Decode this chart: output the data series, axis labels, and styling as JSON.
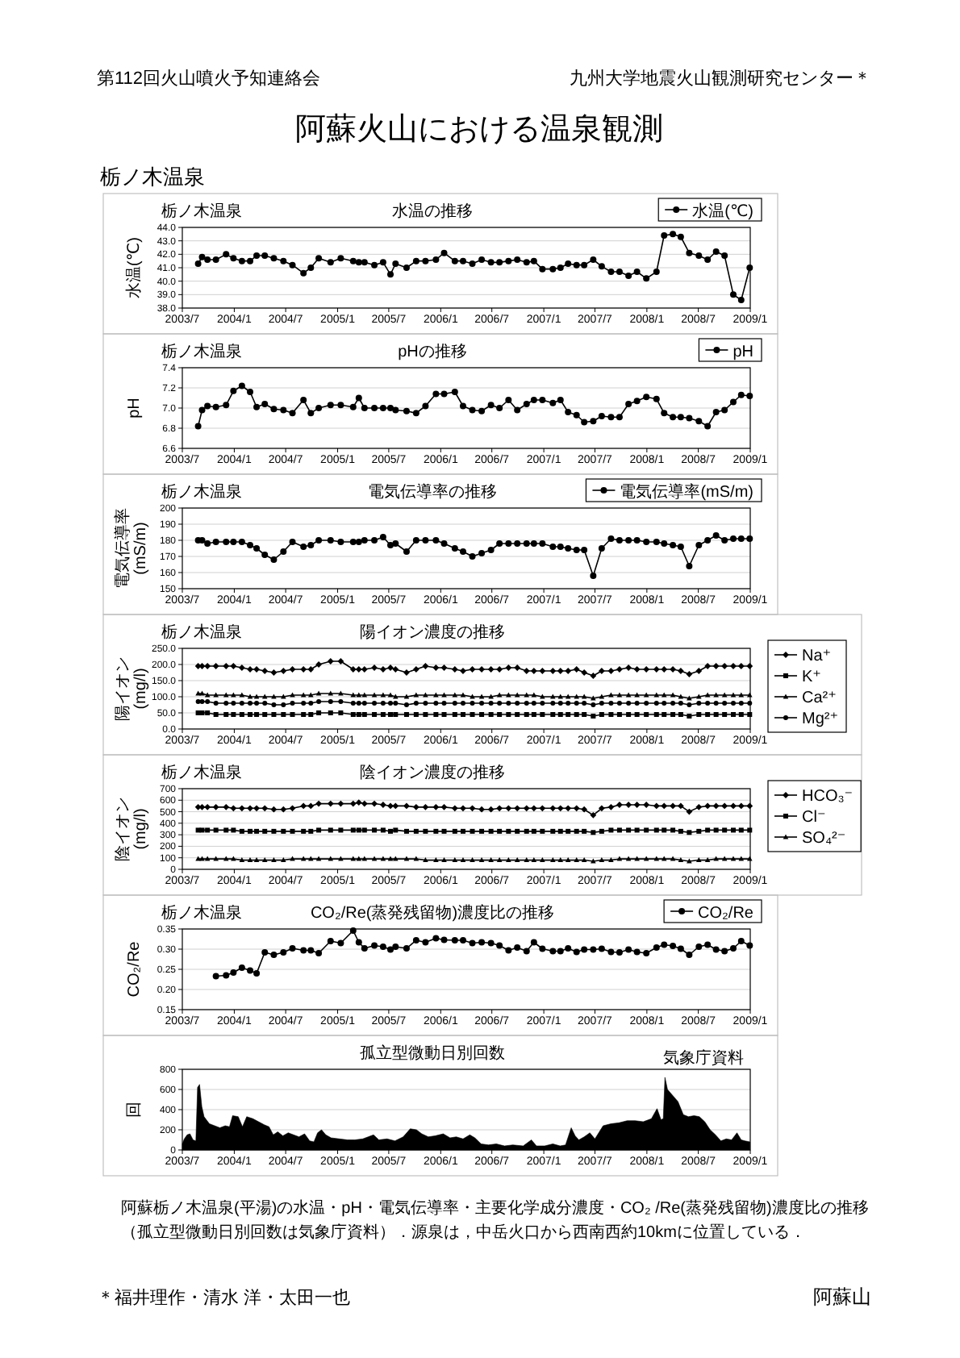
{
  "chart_data": [
    {
      "type": "other",
      "title": "阿蘇火山における温泉観測",
      "annotations": [
        "第112回火山噴火予知連絡会",
        "九州大学地震火山観測研究センター＊",
        "栃ノ木温泉"
      ]
    },
    {
      "type": "line",
      "subtitle": "栃ノ木温泉",
      "title": "水温の推移",
      "ylabel": "水温(℃)",
      "grid": "y",
      "legend": "top right",
      "marker": "circle",
      "line_style": "solid",
      "xlim": [
        "2003-07",
        "2009-01"
      ],
      "xticks": [
        {
          "value": "2003-07",
          "label": "2003/7"
        },
        {
          "value": "2004-01",
          "label": "2004/1"
        },
        {
          "value": "2004-07",
          "label": "2004/7"
        },
        {
          "value": "2005-01",
          "label": "2005/1"
        },
        {
          "value": "2005-07",
          "label": "2005/7"
        },
        {
          "value": "2006-01",
          "label": "2006/1"
        },
        {
          "value": "2006-07",
          "label": "2006/7"
        },
        {
          "value": "2007-01",
          "label": "2007/1"
        },
        {
          "value": "2007-07",
          "label": "2007/7"
        },
        {
          "value": "2008-01",
          "label": "2008/1"
        },
        {
          "value": "2008-07",
          "label": "2008/7"
        },
        {
          "value": "2009-01",
          "label": "2009/1"
        }
      ],
      "ylim": [
        38,
        44
      ],
      "yticks": [
        {
          "value": 38,
          "label": "38.0"
        },
        {
          "value": 39,
          "label": "39.0"
        },
        {
          "value": 40,
          "label": "40.0"
        },
        {
          "value": 41,
          "label": "41.0"
        },
        {
          "value": 42,
          "label": "42.0"
        },
        {
          "value": 43,
          "label": "43.0"
        },
        {
          "value": 44,
          "label": "44.0"
        }
      ],
      "x": [
        "2003-08-26",
        "2003-09-09",
        "2003-09-28",
        "2003-10-28",
        "2003-12-03",
        "2003-12-29",
        "2004-01-28",
        "2004-02-26",
        "2004-03-20",
        "2004-04-18",
        "2004-05-20",
        "2004-06-23",
        "2004-07-25",
        "2004-09-02",
        "2004-09-28",
        "2004-10-26",
        "2004-12-07",
        "2005-01-12",
        "2005-02-25",
        "2005-03-17",
        "2005-04-06",
        "2005-05-11",
        "2005-06-11",
        "2005-07-07",
        "2005-07-25",
        "2005-09-02",
        "2005-10-06",
        "2005-11-08",
        "2005-12-15",
        "2006-01-13",
        "2006-02-20",
        "2006-03-21",
        "2006-04-23",
        "2006-05-26",
        "2006-06-28",
        "2006-07-28",
        "2006-08-29",
        "2006-09-29",
        "2006-11-01",
        "2006-11-27",
        "2006-12-27",
        "2007-02-02",
        "2007-03-01",
        "2007-03-28",
        "2007-04-27",
        "2007-05-24",
        "2007-06-25",
        "2007-07-25",
        "2007-08-27",
        "2007-09-26",
        "2007-10-28",
        "2007-11-27",
        "2007-12-30",
        "2008-02-04",
        "2008-03-02",
        "2008-04-02",
        "2008-04-30",
        "2008-05-30",
        "2008-07-03",
        "2008-08-03",
        "2008-09-02",
        "2008-10-02",
        "2008-11-02",
        "2008-11-30",
        "2008-12-30"
      ],
      "series": [
        {
          "name": "水温(℃)",
          "color": "#000000",
          "values": [
            41.3,
            41.8,
            41.6,
            41.6,
            42.0,
            41.7,
            41.5,
            41.5,
            41.9,
            41.9,
            41.7,
            41.5,
            41.2,
            40.6,
            41.0,
            41.7,
            41.4,
            41.7,
            41.5,
            41.4,
            41.4,
            41.2,
            41.4,
            40.5,
            41.3,
            41.0,
            41.5,
            41.5,
            41.6,
            42.1,
            41.5,
            41.5,
            41.3,
            41.6,
            41.4,
            41.4,
            41.5,
            41.6,
            41.4,
            41.5,
            40.9,
            40.9,
            41.0,
            41.3,
            41.2,
            41.2,
            41.6,
            41.1,
            40.7,
            40.7,
            40.4,
            40.7,
            40.2,
            40.7,
            43.4,
            43.5,
            43.3,
            42.1,
            41.9,
            41.6,
            42.2,
            41.9,
            39.0,
            38.6,
            41.0
          ]
        }
      ]
    },
    {
      "type": "line",
      "subtitle": "栃ノ木温泉",
      "title": "pHの推移",
      "ylabel": "pH",
      "grid": "y",
      "legend": "top right",
      "marker": "circle",
      "line_style": "solid",
      "xlim": [
        "2003-07",
        "2009-01"
      ],
      "xticks": [
        {
          "value": "2003-07",
          "label": "2003/7"
        },
        {
          "value": "2004-01",
          "label": "2004/1"
        },
        {
          "value": "2004-07",
          "label": "2004/7"
        },
        {
          "value": "2005-01",
          "label": "2005/1"
        },
        {
          "value": "2005-07",
          "label": "2005/7"
        },
        {
          "value": "2006-01",
          "label": "2006/1"
        },
        {
          "value": "2006-07",
          "label": "2006/7"
        },
        {
          "value": "2007-01",
          "label": "2007/1"
        },
        {
          "value": "2007-07",
          "label": "2007/7"
        },
        {
          "value": "2008-01",
          "label": "2008/1"
        },
        {
          "value": "2008-07",
          "label": "2008/7"
        },
        {
          "value": "2009-01",
          "label": "2009/1"
        }
      ],
      "ylim": [
        6.6,
        7.4
      ],
      "yticks": [
        6.6,
        6.8,
        {
          "value": 7,
          "label": "7.0"
        },
        7.2,
        7.4
      ],
      "x": [
        "2003-08-26",
        "2003-09-09",
        "2003-09-28",
        "2003-10-28",
        "2003-12-03",
        "2003-12-29",
        "2004-01-28",
        "2004-02-26",
        "2004-03-20",
        "2004-04-18",
        "2004-05-20",
        "2004-06-23",
        "2004-07-25",
        "2004-09-02",
        "2004-09-28",
        "2004-10-26",
        "2004-12-07",
        "2005-01-12",
        "2005-02-25",
        "2005-03-17",
        "2005-04-06",
        "2005-05-11",
        "2005-06-11",
        "2005-07-07",
        "2005-07-25",
        "2005-09-02",
        "2005-10-06",
        "2005-11-08",
        "2005-12-15",
        "2006-01-13",
        "2006-02-20",
        "2006-03-21",
        "2006-04-23",
        "2006-05-26",
        "2006-06-28",
        "2006-07-28",
        "2006-08-29",
        "2006-09-29",
        "2006-11-01",
        "2006-11-27",
        "2006-12-27",
        "2007-02-02",
        "2007-03-01",
        "2007-03-28",
        "2007-04-27",
        "2007-05-24",
        "2007-06-25",
        "2007-07-25",
        "2007-08-27",
        "2007-09-26",
        "2007-10-28",
        "2007-11-27",
        "2007-12-30",
        "2008-02-04",
        "2008-03-02",
        "2008-04-02",
        "2008-04-30",
        "2008-05-30",
        "2008-07-03",
        "2008-08-03",
        "2008-09-02",
        "2008-10-02",
        "2008-11-02",
        "2008-11-30",
        "2008-12-30"
      ],
      "series": [
        {
          "name": "pH",
          "color": "#000000",
          "values": [
            6.82,
            6.98,
            7.02,
            7.01,
            7.03,
            7.17,
            7.22,
            7.16,
            7.01,
            7.04,
            6.99,
            6.98,
            6.95,
            7.08,
            6.95,
            7.0,
            7.03,
            7.03,
            7.01,
            7.1,
            7.0,
            7.0,
            7.0,
            7.0,
            6.98,
            6.97,
            6.95,
            7.02,
            7.14,
            7.14,
            7.16,
            7.02,
            6.98,
            6.97,
            7.03,
            7.0,
            7.08,
            6.98,
            7.04,
            7.08,
            7.08,
            7.05,
            7.08,
            6.96,
            6.93,
            6.86,
            6.87,
            6.92,
            6.91,
            6.91,
            7.04,
            7.07,
            7.11,
            7.09,
            6.95,
            6.91,
            6.91,
            6.9,
            6.87,
            6.82,
            6.96,
            6.98,
            7.06,
            7.13,
            7.12
          ]
        }
      ]
    },
    {
      "type": "line",
      "subtitle": "栃ノ木温泉",
      "title": "電気伝導率の推移",
      "ylabel": "電気伝導率(mS/m)",
      "grid": "y",
      "legend": "top right",
      "marker": "circle",
      "line_style": "solid",
      "xlim": [
        "2003-07",
        "2009-01"
      ],
      "xticks": [
        {
          "value": "2003-07",
          "label": "2003/7"
        },
        {
          "value": "2004-01",
          "label": "2004/1"
        },
        {
          "value": "2004-07",
          "label": "2004/7"
        },
        {
          "value": "2005-01",
          "label": "2005/1"
        },
        {
          "value": "2005-07",
          "label": "2005/7"
        },
        {
          "value": "2006-01",
          "label": "2006/1"
        },
        {
          "value": "2006-07",
          "label": "2006/7"
        },
        {
          "value": "2007-01",
          "label": "2007/1"
        },
        {
          "value": "2007-07",
          "label": "2007/7"
        },
        {
          "value": "2008-01",
          "label": "2008/1"
        },
        {
          "value": "2008-07",
          "label": "2008/7"
        },
        {
          "value": "2009-01",
          "label": "2009/1"
        }
      ],
      "ylim": [
        150,
        200
      ],
      "yticks": [
        150,
        160,
        170,
        180,
        190,
        200
      ],
      "x": [
        "2003-08-26",
        "2003-09-09",
        "2003-09-28",
        "2003-10-28",
        "2003-12-03",
        "2003-12-29",
        "2004-01-28",
        "2004-02-26",
        "2004-03-20",
        "2004-04-18",
        "2004-05-20",
        "2004-06-23",
        "2004-07-25",
        "2004-09-02",
        "2004-09-28",
        "2004-10-26",
        "2004-12-07",
        "2005-01-12",
        "2005-02-25",
        "2005-03-17",
        "2005-04-06",
        "2005-05-11",
        "2005-06-11",
        "2005-07-07",
        "2005-07-25",
        "2005-09-02",
        "2005-10-06",
        "2005-11-08",
        "2005-12-15",
        "2006-01-13",
        "2006-02-20",
        "2006-03-21",
        "2006-04-23",
        "2006-05-26",
        "2006-06-28",
        "2006-07-28",
        "2006-08-29",
        "2006-09-29",
        "2006-11-01",
        "2006-11-27",
        "2006-12-27",
        "2007-02-02",
        "2007-03-01",
        "2007-03-28",
        "2007-04-27",
        "2007-05-24",
        "2007-06-25",
        "2007-07-25",
        "2007-08-27",
        "2007-09-26",
        "2007-10-28",
        "2007-11-27",
        "2007-12-30",
        "2008-02-04",
        "2008-03-02",
        "2008-04-02",
        "2008-04-30",
        "2008-05-30",
        "2008-07-03",
        "2008-08-03",
        "2008-09-02",
        "2008-10-02",
        "2008-11-02",
        "2008-11-30",
        "2008-12-30"
      ],
      "series": [
        {
          "name": "電気伝導率(mS/m)",
          "color": "#000000",
          "values": [
            180,
            180,
            178,
            179,
            179,
            179,
            179,
            177,
            175,
            171,
            168,
            173,
            179,
            176,
            177,
            180,
            180,
            179,
            179,
            179,
            180,
            180,
            182,
            177,
            178,
            173,
            180,
            180,
            180,
            178,
            175,
            173,
            170,
            172,
            174,
            178,
            178,
            178,
            178,
            178,
            178,
            176,
            176,
            175,
            174,
            174,
            158,
            175,
            181,
            180,
            180,
            180,
            179,
            179,
            178,
            177,
            176,
            164,
            177,
            180,
            183,
            180,
            181,
            181,
            181
          ]
        }
      ]
    },
    {
      "type": "line",
      "subtitle": "栃ノ木温泉",
      "title": "陽イオン濃度の推移",
      "ylabel": "陽イオン(mg/l)",
      "grid": "y",
      "legend": "right",
      "line_style": "solid",
      "xlim": [
        "2003-07",
        "2009-01"
      ],
      "xticks": [
        {
          "value": "2003-07",
          "label": "2003/7"
        },
        {
          "value": "2004-01",
          "label": "2004/1"
        },
        {
          "value": "2004-07",
          "label": "2004/7"
        },
        {
          "value": "2005-01",
          "label": "2005/1"
        },
        {
          "value": "2005-07",
          "label": "2005/7"
        },
        {
          "value": "2006-01",
          "label": "2006/1"
        },
        {
          "value": "2006-07",
          "label": "2006/7"
        },
        {
          "value": "2007-01",
          "label": "2007/1"
        },
        {
          "value": "2007-07",
          "label": "2007/7"
        },
        {
          "value": "2008-01",
          "label": "2008/1"
        },
        {
          "value": "2008-07",
          "label": "2008/7"
        },
        {
          "value": "2009-01",
          "label": "2009/1"
        }
      ],
      "ylim": [
        0,
        250
      ],
      "yticks": [
        {
          "value": 0,
          "label": "0.0"
        },
        {
          "value": 50,
          "label": "50.0"
        },
        {
          "value": 100,
          "label": "100.0"
        },
        {
          "value": 150,
          "label": "150.0"
        },
        {
          "value": 200,
          "label": "200.0"
        },
        {
          "value": 250,
          "label": "250.0"
        }
      ],
      "x": [
        "2003-08-26",
        "2003-09-09",
        "2003-09-28",
        "2003-10-28",
        "2003-12-03",
        "2003-12-29",
        "2004-01-28",
        "2004-02-26",
        "2004-03-20",
        "2004-04-18",
        "2004-05-20",
        "2004-06-23",
        "2004-07-25",
        "2004-09-02",
        "2004-09-28",
        "2004-10-26",
        "2004-12-07",
        "2005-01-12",
        "2005-02-25",
        "2005-03-17",
        "2005-04-06",
        "2005-05-11",
        "2005-06-11",
        "2005-07-07",
        "2005-07-25",
        "2005-09-02",
        "2005-10-06",
        "2005-11-08",
        "2005-12-15",
        "2006-01-13",
        "2006-02-20",
        "2006-03-21",
        "2006-04-23",
        "2006-05-26",
        "2006-06-28",
        "2006-07-28",
        "2006-08-29",
        "2006-09-29",
        "2006-11-01",
        "2006-11-27",
        "2006-12-27",
        "2007-02-02",
        "2007-03-01",
        "2007-03-28",
        "2007-04-27",
        "2007-05-24",
        "2007-06-25",
        "2007-07-25",
        "2007-08-27",
        "2007-09-26",
        "2007-10-28",
        "2007-11-27",
        "2007-12-30",
        "2008-02-04",
        "2008-03-02",
        "2008-04-02",
        "2008-04-30",
        "2008-05-30",
        "2008-07-03",
        "2008-08-03",
        "2008-09-02",
        "2008-10-02",
        "2008-11-02",
        "2008-11-30",
        "2008-12-30"
      ],
      "series": [
        {
          "name": "Na⁺",
          "color": "#000000",
          "marker": "diamond",
          "values": [
            195,
            195,
            195,
            195,
            195,
            195,
            190,
            185,
            185,
            180,
            175,
            180,
            185,
            185,
            185,
            200,
            210,
            210,
            185,
            185,
            185,
            190,
            185,
            190,
            185,
            175,
            185,
            195,
            190,
            190,
            185,
            180,
            185,
            185,
            185,
            185,
            190,
            190,
            180,
            180,
            180,
            180,
            180,
            180,
            185,
            175,
            165,
            180,
            180,
            185,
            190,
            185,
            185,
            185,
            185,
            185,
            180,
            170,
            180,
            195,
            195,
            195,
            195,
            195,
            195
          ]
        },
        {
          "name": "K⁺",
          "color": "#000000",
          "marker": "square",
          "values": [
            50,
            50,
            50,
            45,
            45,
            45,
            45,
            45,
            45,
            45,
            45,
            45,
            45,
            45,
            45,
            50,
            50,
            50,
            45,
            45,
            45,
            45,
            45,
            45,
            45,
            45,
            45,
            45,
            45,
            45,
            45,
            45,
            45,
            45,
            45,
            45,
            45,
            45,
            45,
            45,
            45,
            45,
            45,
            45,
            45,
            45,
            40,
            45,
            45,
            45,
            45,
            45,
            45,
            45,
            45,
            45,
            45,
            40,
            45,
            45,
            45,
            45,
            45,
            45,
            45
          ]
        },
        {
          "name": "Ca²⁺",
          "color": "#000000",
          "marker": "triangle",
          "values": [
            110,
            110,
            105,
            105,
            105,
            105,
            105,
            100,
            100,
            100,
            100,
            100,
            105,
            105,
            105,
            110,
            110,
            110,
            105,
            105,
            105,
            105,
            105,
            105,
            100,
            100,
            105,
            105,
            105,
            105,
            105,
            105,
            100,
            100,
            100,
            105,
            105,
            105,
            105,
            105,
            100,
            100,
            100,
            100,
            100,
            100,
            95,
            100,
            105,
            105,
            105,
            105,
            105,
            105,
            105,
            105,
            100,
            95,
            100,
            105,
            105,
            105,
            105,
            105,
            105
          ]
        },
        {
          "name": "Mg²⁺",
          "color": "#000000",
          "marker": "circle",
          "values": [
            85,
            85,
            85,
            80,
            80,
            80,
            80,
            80,
            80,
            80,
            75,
            75,
            80,
            80,
            80,
            85,
            85,
            85,
            80,
            80,
            80,
            80,
            80,
            80,
            80,
            75,
            80,
            80,
            80,
            80,
            80,
            80,
            80,
            80,
            80,
            80,
            80,
            80,
            80,
            80,
            80,
            80,
            80,
            80,
            80,
            80,
            75,
            80,
            80,
            80,
            80,
            80,
            80,
            80,
            80,
            80,
            80,
            75,
            80,
            80,
            80,
            80,
            80,
            80,
            80
          ]
        }
      ]
    },
    {
      "type": "line",
      "subtitle": "栃ノ木温泉",
      "title": "陰イオン濃度の推移",
      "ylabel": "陰イオン(mg/l)",
      "grid": "y",
      "legend": "right",
      "line_style": "solid",
      "xlim": [
        "2003-07",
        "2009-01"
      ],
      "xticks": [
        {
          "value": "2003-07",
          "label": "2003/7"
        },
        {
          "value": "2004-01",
          "label": "2004/1"
        },
        {
          "value": "2004-07",
          "label": "2004/7"
        },
        {
          "value": "2005-01",
          "label": "2005/1"
        },
        {
          "value": "2005-07",
          "label": "2005/7"
        },
        {
          "value": "2006-01",
          "label": "2006/1"
        },
        {
          "value": "2006-07",
          "label": "2006/7"
        },
        {
          "value": "2007-01",
          "label": "2007/1"
        },
        {
          "value": "2007-07",
          "label": "2007/7"
        },
        {
          "value": "2008-01",
          "label": "2008/1"
        },
        {
          "value": "2008-07",
          "label": "2008/7"
        },
        {
          "value": "2009-01",
          "label": "2009/1"
        }
      ],
      "ylim": [
        0,
        700
      ],
      "yticks": [
        0,
        100,
        200,
        300,
        400,
        500,
        600,
        700
      ],
      "x": [
        "2003-08-26",
        "2003-09-09",
        "2003-09-28",
        "2003-10-28",
        "2003-12-03",
        "2003-12-29",
        "2004-01-28",
        "2004-02-26",
        "2004-03-20",
        "2004-04-18",
        "2004-05-20",
        "2004-06-23",
        "2004-07-25",
        "2004-09-02",
        "2004-09-28",
        "2004-10-26",
        "2004-12-07",
        "2005-01-12",
        "2005-02-25",
        "2005-03-17",
        "2005-04-06",
        "2005-05-11",
        "2005-06-11",
        "2005-07-07",
        "2005-07-25",
        "2005-09-02",
        "2005-10-06",
        "2005-11-08",
        "2005-12-15",
        "2006-01-13",
        "2006-02-20",
        "2006-03-21",
        "2006-04-23",
        "2006-05-26",
        "2006-06-28",
        "2006-07-28",
        "2006-08-29",
        "2006-09-29",
        "2006-11-01",
        "2006-11-27",
        "2006-12-27",
        "2007-02-02",
        "2007-03-01",
        "2007-03-28",
        "2007-04-27",
        "2007-05-24",
        "2007-06-25",
        "2007-07-25",
        "2007-08-27",
        "2007-09-26",
        "2007-10-28",
        "2007-11-27",
        "2007-12-30",
        "2008-02-04",
        "2008-03-02",
        "2008-04-02",
        "2008-04-30",
        "2008-05-30",
        "2008-07-03",
        "2008-08-03",
        "2008-09-02",
        "2008-10-02",
        "2008-11-02",
        "2008-11-30",
        "2008-12-30"
      ],
      "series": [
        {
          "name": "HCO₃⁻",
          "color": "#000000",
          "marker": "diamond",
          "values": [
            540,
            540,
            540,
            540,
            540,
            530,
            530,
            530,
            530,
            530,
            520,
            520,
            530,
            550,
            550,
            570,
            570,
            570,
            570,
            580,
            570,
            570,
            560,
            550,
            550,
            550,
            540,
            540,
            540,
            540,
            530,
            530,
            530,
            520,
            520,
            530,
            530,
            530,
            530,
            530,
            530,
            530,
            530,
            530,
            530,
            520,
            470,
            530,
            540,
            560,
            560,
            560,
            560,
            550,
            550,
            550,
            550,
            500,
            540,
            550,
            550,
            550,
            550,
            550,
            550
          ]
        },
        {
          "name": "Cl⁻",
          "color": "#000000",
          "marker": "square",
          "values": [
            340,
            340,
            340,
            340,
            340,
            340,
            330,
            330,
            330,
            330,
            330,
            330,
            330,
            330,
            330,
            340,
            340,
            340,
            340,
            340,
            340,
            340,
            340,
            330,
            340,
            330,
            330,
            330,
            330,
            330,
            330,
            330,
            330,
            330,
            330,
            330,
            330,
            330,
            330,
            330,
            330,
            330,
            330,
            330,
            330,
            330,
            320,
            330,
            340,
            340,
            340,
            340,
            340,
            340,
            340,
            340,
            330,
            320,
            330,
            340,
            340,
            340,
            340,
            340,
            340
          ]
        },
        {
          "name": "SO₄²⁻",
          "color": "#000000",
          "marker": "triangle",
          "values": [
            90,
            90,
            90,
            90,
            90,
            90,
            80,
            80,
            80,
            80,
            80,
            80,
            90,
            90,
            90,
            90,
            90,
            90,
            90,
            90,
            90,
            90,
            90,
            90,
            90,
            90,
            90,
            80,
            80,
            80,
            80,
            80,
            80,
            80,
            80,
            80,
            80,
            80,
            80,
            80,
            80,
            80,
            80,
            80,
            80,
            80,
            70,
            80,
            80,
            90,
            90,
            90,
            90,
            90,
            90,
            90,
            80,
            70,
            80,
            80,
            90,
            90,
            90,
            90,
            90
          ]
        }
      ]
    },
    {
      "type": "line",
      "subtitle": "栃ノ木温泉",
      "title": "CO₂/Re(蒸発残留物)濃度比の推移",
      "ylabel": "CO₂/Re",
      "grid": "y",
      "legend": "top right",
      "marker": "circle",
      "line_style": "solid",
      "xlim": [
        "2003-07",
        "2009-01"
      ],
      "xticks": [
        {
          "value": "2003-07",
          "label": "2003/7"
        },
        {
          "value": "2004-01",
          "label": "2004/1"
        },
        {
          "value": "2004-07",
          "label": "2004/7"
        },
        {
          "value": "2005-01",
          "label": "2005/1"
        },
        {
          "value": "2005-07",
          "label": "2005/7"
        },
        {
          "value": "2006-01",
          "label": "2006/1"
        },
        {
          "value": "2006-07",
          "label": "2006/7"
        },
        {
          "value": "2007-01",
          "label": "2007/1"
        },
        {
          "value": "2007-07",
          "label": "2007/7"
        },
        {
          "value": "2008-01",
          "label": "2008/1"
        },
        {
          "value": "2008-07",
          "label": "2008/7"
        },
        {
          "value": "2009-01",
          "label": "2009/1"
        }
      ],
      "ylim": [
        0.15,
        0.35
      ],
      "yticks": [
        0.15,
        {
          "value": 0.2,
          "label": "0.20"
        },
        0.25,
        {
          "value": 0.3,
          "label": "0.30"
        },
        0.35
      ],
      "x": [
        "2003-10-28",
        "2003-12-03",
        "2003-12-29",
        "2004-01-28",
        "2004-02-26",
        "2004-03-20",
        "2004-04-18",
        "2004-05-20",
        "2004-06-23",
        "2004-07-25",
        "2004-09-02",
        "2004-09-28",
        "2004-10-26",
        "2004-12-07",
        "2005-01-12",
        "2005-02-25",
        "2005-03-17",
        "2005-04-06",
        "2005-05-11",
        "2005-06-11",
        "2005-07-07",
        "2005-07-25",
        "2005-09-02",
        "2005-10-06",
        "2005-11-08",
        "2005-12-15",
        "2006-01-13",
        "2006-02-20",
        "2006-03-21",
        "2006-04-23",
        "2006-05-26",
        "2006-06-28",
        "2006-07-28",
        "2006-08-29",
        "2006-09-29",
        "2006-11-01",
        "2006-11-27",
        "2006-12-27",
        "2007-02-02",
        "2007-03-01",
        "2007-03-28",
        "2007-04-27",
        "2007-05-24",
        "2007-06-25",
        "2007-07-25",
        "2007-08-27",
        "2007-09-26",
        "2007-10-28",
        "2007-11-27",
        "2007-12-30",
        "2008-02-04",
        "2008-03-02",
        "2008-04-02",
        "2008-04-30",
        "2008-05-30",
        "2008-07-03",
        "2008-08-03",
        "2008-09-02",
        "2008-10-02",
        "2008-11-02",
        "2008-11-30",
        "2008-12-30"
      ],
      "series": [
        {
          "name": "CO₂/Re",
          "color": "#000000",
          "values": [
            0.233,
            0.235,
            0.242,
            0.254,
            0.247,
            0.24,
            0.292,
            0.286,
            0.292,
            0.302,
            0.297,
            0.297,
            0.29,
            0.32,
            0.315,
            0.346,
            0.317,
            0.302,
            0.309,
            0.306,
            0.299,
            0.306,
            0.302,
            0.322,
            0.317,
            0.327,
            0.323,
            0.322,
            0.322,
            0.315,
            0.317,
            0.315,
            0.309,
            0.297,
            0.304,
            0.295,
            0.317,
            0.301,
            0.295,
            0.295,
            0.302,
            0.293,
            0.299,
            0.299,
            0.301,
            0.293,
            0.292,
            0.299,
            0.293,
            0.29,
            0.304,
            0.311,
            0.308,
            0.301,
            0.286,
            0.306,
            0.311,
            0.299,
            0.295,
            0.302,
            0.32,
            0.309
          ]
        }
      ]
    },
    {
      "type": "area",
      "title": "孤立型微動日別回数",
      "annotations": [
        "気象庁資料"
      ],
      "ylabel": "回",
      "grid": "y",
      "xlim": [
        "2003-07",
        "2009-01"
      ],
      "xticks": [
        {
          "value": "2003-07",
          "label": "2003/7"
        },
        {
          "value": "2004-01",
          "label": "2004/1"
        },
        {
          "value": "2004-07",
          "label": "2004/7"
        },
        {
          "value": "2005-01",
          "label": "2005/1"
        },
        {
          "value": "2005-07",
          "label": "2005/7"
        },
        {
          "value": "2006-01",
          "label": "2006/1"
        },
        {
          "value": "2006-07",
          "label": "2006/7"
        },
        {
          "value": "2007-01",
          "label": "2007/1"
        },
        {
          "value": "2007-07",
          "label": "2007/7"
        },
        {
          "value": "2008-01",
          "label": "2008/1"
        },
        {
          "value": "2008-07",
          "label": "2008/7"
        },
        {
          "value": "2009-01",
          "label": "2009/1"
        }
      ],
      "ylim": [
        0,
        800
      ],
      "yticks": [
        0,
        200,
        400,
        600,
        800
      ],
      "x": [
        "2003-07-01",
        "2003-07-08",
        "2003-07-18",
        "2003-07-28",
        "2003-08-08",
        "2003-08-18",
        "2003-08-24",
        "2003-08-31",
        "2003-09-08",
        "2003-09-16",
        "2003-10-05",
        "2003-11-11",
        "2003-11-30",
        "2003-12-15",
        "2003-12-26",
        "2004-01-15",
        "2004-01-30",
        "2004-02-14",
        "2004-03-07",
        "2004-03-27",
        "2004-04-16",
        "2004-05-03",
        "2004-05-18",
        "2004-06-03",
        "2004-06-21",
        "2004-07-10",
        "2004-07-29",
        "2004-08-17",
        "2004-09-06",
        "2004-09-24",
        "2004-10-09",
        "2004-10-22",
        "2004-11-05",
        "2004-11-20",
        "2004-12-09",
        "2005-01-07",
        "2005-02-05",
        "2005-03-03",
        "2005-03-31",
        "2005-04-19",
        "2005-05-08",
        "2005-05-27",
        "2005-06-25",
        "2005-07-23",
        "2005-08-21",
        "2005-09-15",
        "2005-10-07",
        "2005-10-26",
        "2005-11-18",
        "2005-12-12",
        "2006-01-10",
        "2006-02-03",
        "2006-02-25",
        "2006-03-21",
        "2006-04-14",
        "2006-05-02",
        "2006-05-24",
        "2006-06-19",
        "2006-07-17",
        "2006-08-15",
        "2006-09-13",
        "2006-10-20",
        "2006-11-18",
        "2006-12-06",
        "2007-01-04",
        "2007-02-02",
        "2007-02-28",
        "2007-03-19",
        "2007-04-08",
        "2007-04-22",
        "2007-05-05",
        "2007-05-24",
        "2007-06-13",
        "2007-07-01",
        "2007-07-30",
        "2007-08-27",
        "2007-09-25",
        "2007-10-23",
        "2007-11-21",
        "2007-12-19",
        "2008-01-17",
        "2008-02-06",
        "2008-02-20",
        "2008-02-28",
        "2008-03-05",
        "2008-03-14",
        "2008-04-20",
        "2008-05-09",
        "2008-05-27",
        "2008-06-16",
        "2008-07-05",
        "2008-07-24",
        "2008-08-12",
        "2008-08-31",
        "2008-09-19",
        "2008-10-08",
        "2008-10-27",
        "2008-11-15",
        "2008-11-30",
        "2008-12-13",
        "2008-12-31"
      ],
      "series": [
        {
          "color": "#000000",
          "values": [
            60,
            110,
            150,
            160,
            100,
            90,
            620,
            650,
            430,
            330,
            260,
            220,
            240,
            230,
            340,
            330,
            230,
            330,
            310,
            280,
            250,
            230,
            150,
            180,
            140,
            170,
            150,
            130,
            160,
            90,
            80,
            170,
            200,
            150,
            120,
            110,
            100,
            100,
            110,
            130,
            150,
            100,
            110,
            90,
            130,
            210,
            200,
            160,
            130,
            140,
            160,
            120,
            130,
            110,
            150,
            120,
            60,
            50,
            60,
            40,
            50,
            40,
            100,
            40,
            40,
            60,
            40,
            50,
            220,
            140,
            100,
            130,
            170,
            110,
            240,
            260,
            270,
            290,
            290,
            280,
            310,
            410,
            300,
            310,
            720,
            600,
            480,
            350,
            330,
            340,
            330,
            280,
            200,
            150,
            90,
            110,
            100,
            170,
            100,
            90,
            80
          ]
        }
      ]
    },
    {
      "type": "other",
      "annotations": [
        "阿蘇栃ノ木温泉(平湯)の水温・pH・電気伝導率・主要化学成分濃度・CO₂ /Re(蒸発残留物)濃度比の推移",
        "（孤立型微動日別回数は気象庁資料）．源泉は，中岳火口から西南西約10kmに位置している．",
        "＊福井理作・清水 洋・太田一也",
        "阿蘇山"
      ]
    }
  ]
}
